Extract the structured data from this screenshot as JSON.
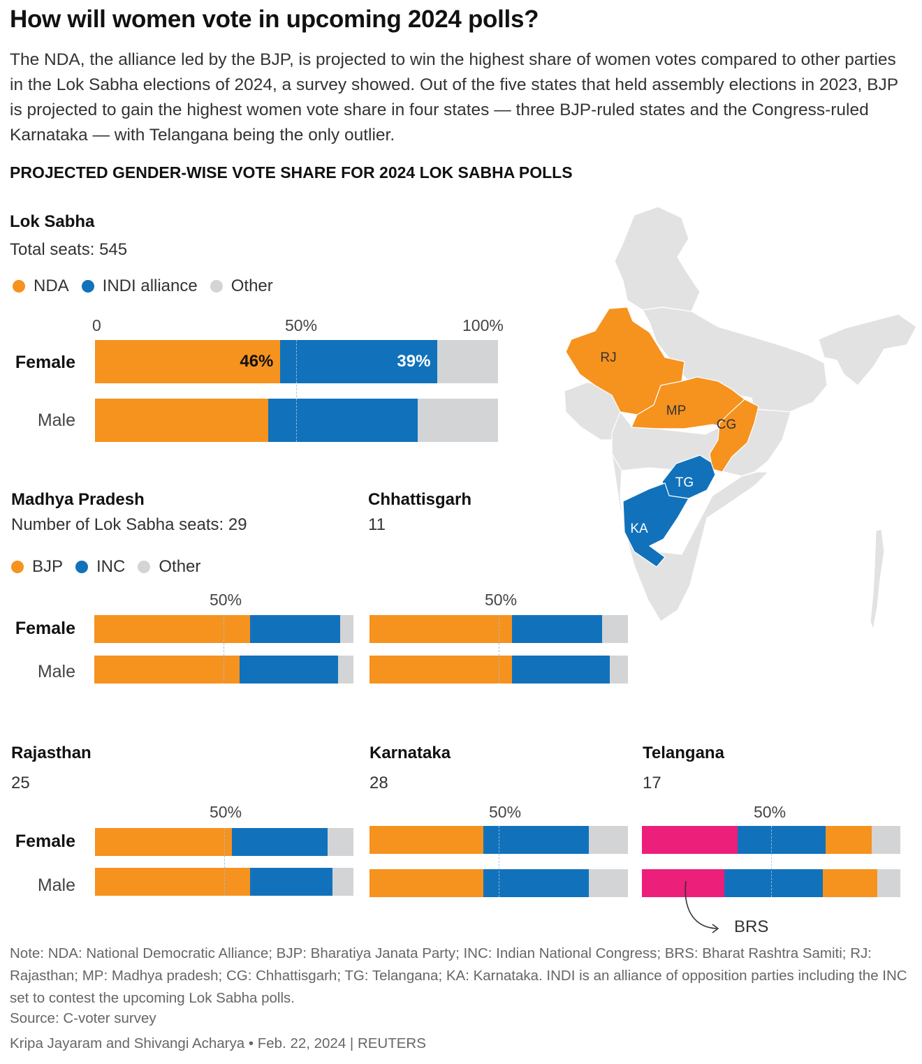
{
  "title": "How will women vote in upcoming 2024 polls?",
  "subtitle": "The NDA, the alliance led by the BJP, is projected to win the highest share of women votes compared to other parties in the Lok Sabha elections of 2024, a survey showed. Out of the five states that held assembly elections in 2023, BJP is projected to gain the highest women vote share in four states — three BJP-ruled states and the Congress-ruled Karnataka — with Telangana being the only outlier.",
  "section_title": "PROJECTED GENDER-WISE VOTE SHARE FOR 2024 LOK SABHA POLLS",
  "colors": {
    "nda": "#f6921e",
    "indi": "#1172bb",
    "other": "#d3d4d6",
    "brs": "#ec1f7a",
    "map_base": "#e2e2e2"
  },
  "row_labels": {
    "female": "Female",
    "male": "Male"
  },
  "lok_sabha": {
    "title": "Lok Sabha",
    "seats": "Total seats: 545",
    "legend": [
      "NDA",
      "INDI alliance",
      "Other"
    ],
    "ticks": [
      "0",
      "50%",
      "100%"
    ]
  },
  "states_legend": [
    "BJP",
    "INC",
    "Other"
  ],
  "tick_50": "50%",
  "madhya_pradesh": {
    "title": "Madhya Pradesh",
    "seats": "Number of Lok Sabha seats: 29"
  },
  "chhattisgarh": {
    "title": "Chhattisgarh",
    "seats": "11"
  },
  "rajasthan": {
    "title": "Rajasthan",
    "seats": "25"
  },
  "karnataka": {
    "title": "Karnataka",
    "seats": "28"
  },
  "telangana": {
    "title": "Telangana",
    "seats": "17"
  },
  "brs_annotation": "BRS",
  "map_labels": {
    "rj": "RJ",
    "mp": "MP",
    "cg": "CG",
    "tg": "TG",
    "ka": "KA"
  },
  "note": "Note: NDA: National Democratic Alliance; BJP: Bharatiya Janata Party; INC: Indian National Congress; BRS: Bharat Rashtra Samiti; RJ: Rajasthan; MP: Madhya pradesh; CG: Chhattisgarh; TG: Telangana; KA: Karnataka. INDI is an alliance of opposition parties including the INC set to contest the upcoming Lok Sabha polls.",
  "source": "Source: C-voter survey",
  "credit": "Kripa Jayaram and Shivangi Acharya • Feb. 22, 2024 | REUTERS",
  "chart_data": [
    {
      "id": "lok_sabha",
      "type": "bar",
      "orientation": "horizontal",
      "stacked": true,
      "title": "Lok Sabha",
      "xlim": [
        0,
        100
      ],
      "categories": [
        "Female",
        "Male"
      ],
      "series": [
        {
          "name": "NDA",
          "values": [
            46,
            43
          ],
          "labels": [
            "46%",
            ""
          ]
        },
        {
          "name": "INDI alliance",
          "values": [
            39,
            37
          ],
          "labels": [
            "39%",
            ""
          ]
        },
        {
          "name": "Other",
          "values": [
            15,
            20
          ]
        }
      ]
    },
    {
      "id": "madhya_pradesh",
      "type": "bar",
      "orientation": "horizontal",
      "stacked": true,
      "title": "Madhya Pradesh",
      "xlim": [
        0,
        100
      ],
      "categories": [
        "Female",
        "Male"
      ],
      "series": [
        {
          "name": "BJP",
          "values": [
            60,
            56
          ]
        },
        {
          "name": "INC",
          "values": [
            35,
            38
          ]
        },
        {
          "name": "Other",
          "values": [
            5,
            6
          ]
        }
      ]
    },
    {
      "id": "chhattisgarh",
      "type": "bar",
      "orientation": "horizontal",
      "stacked": true,
      "title": "Chhattisgarh",
      "xlim": [
        0,
        100
      ],
      "categories": [
        "Female",
        "Male"
      ],
      "series": [
        {
          "name": "BJP",
          "values": [
            55,
            55
          ]
        },
        {
          "name": "INC",
          "values": [
            35,
            38
          ]
        },
        {
          "name": "Other",
          "values": [
            10,
            7
          ]
        }
      ]
    },
    {
      "id": "rajasthan",
      "type": "bar",
      "orientation": "horizontal",
      "stacked": true,
      "title": "Rajasthan",
      "xlim": [
        0,
        100
      ],
      "categories": [
        "Female",
        "Male"
      ],
      "series": [
        {
          "name": "BJP",
          "values": [
            53,
            60
          ]
        },
        {
          "name": "INC",
          "values": [
            37,
            32
          ]
        },
        {
          "name": "Other",
          "values": [
            10,
            8
          ]
        }
      ]
    },
    {
      "id": "karnataka",
      "type": "bar",
      "orientation": "horizontal",
      "stacked": true,
      "title": "Karnataka",
      "xlim": [
        0,
        100
      ],
      "categories": [
        "Female",
        "Male"
      ],
      "series": [
        {
          "name": "BJP",
          "values": [
            44,
            44
          ]
        },
        {
          "name": "INC",
          "values": [
            41,
            41
          ]
        },
        {
          "name": "Other",
          "values": [
            15,
            15
          ]
        }
      ]
    },
    {
      "id": "telangana",
      "type": "bar",
      "orientation": "horizontal",
      "stacked": true,
      "title": "Telangana",
      "xlim": [
        0,
        100
      ],
      "categories": [
        "Female",
        "Male"
      ],
      "series": [
        {
          "name": "BRS",
          "values": [
            37,
            32
          ]
        },
        {
          "name": "INC",
          "values": [
            34,
            38
          ]
        },
        {
          "name": "BJP",
          "values": [
            18,
            21
          ]
        },
        {
          "name": "Other",
          "values": [
            11,
            9
          ]
        }
      ]
    }
  ]
}
